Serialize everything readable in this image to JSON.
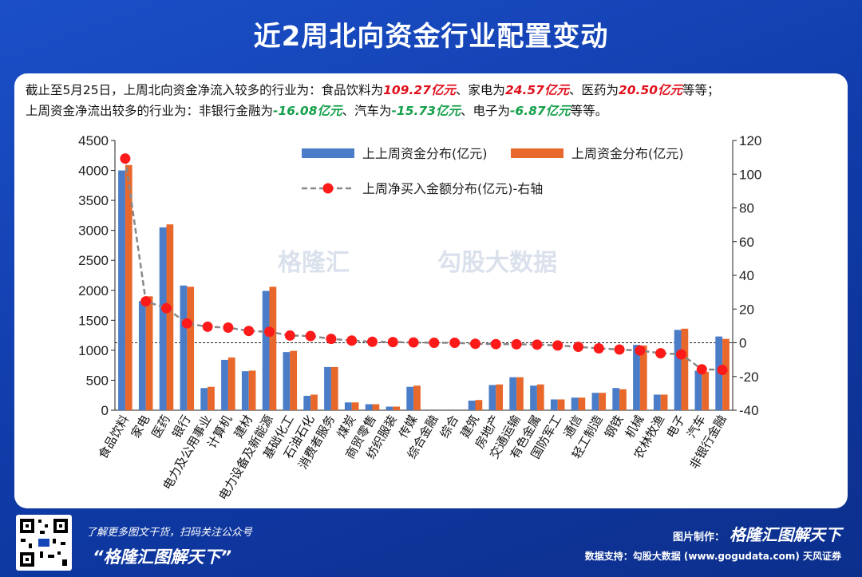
{
  "title": "近2周北向资金行业配置变动",
  "summary": {
    "line1_a": "截止至5月25日，上周北向资金净流入较多的行业为：食品饮料为",
    "line1_v1": "109.27亿元",
    "line1_b": "、家电为",
    "line1_v2": "24.57亿元",
    "line1_c": "、医药为",
    "line1_v3": "20.50亿元",
    "line1_d": "等等；",
    "line2_a": "上周资金净流出较多的行业为：非银行金融为",
    "line2_v1": "-16.08亿元",
    "line2_b": "、汽车为",
    "line2_v2": "-15.73亿元",
    "line2_c": "、电子为",
    "line2_v3": "-6.87亿元",
    "line2_d": "等等。"
  },
  "watermark": {
    "left": "格隆汇",
    "right": "勾股大数据"
  },
  "footer": {
    "promo": "了解更多图文干货，扫码关注公众号",
    "slogan": "“格隆汇图解天下”",
    "made_by": "图片制作：",
    "brand": "格隆汇图解天下",
    "data_support": "数据支持：勾股大数据 (www.gogudata.com) 天风证券"
  },
  "colors": {
    "bg": "#1446b8",
    "bar_prev": "#4a7cc7",
    "bar_last": "#e8682c",
    "line": "#888888",
    "dot": "#ff1a1a",
    "positive": "#e0101c",
    "negative": "#14a04a"
  },
  "chart_data": {
    "type": "bar",
    "categories": [
      "食品饮料",
      "家电",
      "医药",
      "银行",
      "电力及公用事业",
      "计算机",
      "建材",
      "电力设备及新能源",
      "基础化工",
      "石油石化",
      "消费者服务",
      "煤炭",
      "商贸零售",
      "纺织服装",
      "传媒",
      "综合金融",
      "综合",
      "建筑",
      "房地产",
      "交通运输",
      "有色金属",
      "国防军工",
      "通信",
      "轻工制造",
      "钢铁",
      "机械",
      "农林牧渔",
      "电子",
      "汽车",
      "非银行金融"
    ],
    "series": [
      {
        "name": "上上周资金分布(亿元)",
        "axis": "left",
        "values": [
          4000,
          1820,
          3050,
          2080,
          370,
          840,
          650,
          1990,
          970,
          240,
          720,
          130,
          100,
          60,
          390,
          0,
          0,
          160,
          420,
          550,
          410,
          180,
          210,
          290,
          370,
          1090,
          260,
          1340,
          660,
          1230
        ]
      },
      {
        "name": "上周资金分布(亿元)",
        "axis": "left",
        "values": [
          4090,
          1900,
          3100,
          2060,
          390,
          880,
          660,
          2060,
          990,
          260,
          720,
          130,
          100,
          60,
          410,
          0,
          0,
          170,
          430,
          550,
          430,
          180,
          210,
          290,
          350,
          1080,
          260,
          1360,
          640,
          1190
        ]
      },
      {
        "name": "上周净买入金额分布(亿元)-右轴",
        "axis": "right",
        "type": "line",
        "values": [
          109.27,
          24.57,
          20.5,
          11.5,
          9.5,
          9.0,
          7.0,
          6.5,
          4.3,
          4.0,
          2.3,
          1.3,
          0.6,
          0.4,
          0.2,
          0,
          0,
          -0.6,
          -0.8,
          -0.9,
          -1.1,
          -1.6,
          -2.4,
          -3.3,
          -4.0,
          -4.6,
          -6.2,
          -6.87,
          -15.73,
          -16.08
        ]
      }
    ],
    "ylim_left": [
      0,
      4500
    ],
    "ylim_right": [
      -40,
      120
    ],
    "yticks_left": [
      0,
      500,
      1000,
      1500,
      2000,
      2500,
      3000,
      3500,
      4000,
      4500
    ],
    "yticks_right": [
      -40,
      -20,
      0,
      20,
      40,
      60,
      80,
      100,
      120
    ],
    "legend_position": "top-right"
  }
}
